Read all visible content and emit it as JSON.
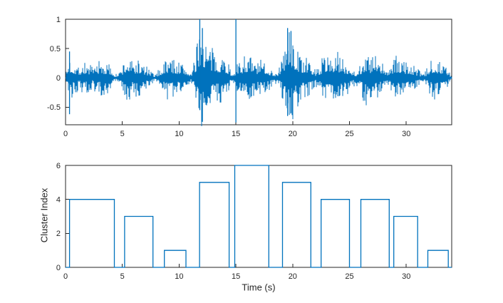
{
  "figure": {
    "background": "#ffffff",
    "line_color": "#0072BD",
    "axis_color": "#262626",
    "tick_label_color": "#262626"
  },
  "chart_data": [
    {
      "type": "line",
      "title": "",
      "xlabel": "",
      "ylabel": "",
      "description": "audio-waveform",
      "xlim": [
        0,
        34
      ],
      "ylim": [
        -0.8,
        1
      ],
      "xticks": [
        0,
        5,
        10,
        15,
        20,
        25,
        30
      ],
      "yticks": [
        -0.5,
        0,
        0.5,
        1
      ],
      "xtick_labels": [
        "0",
        "5",
        "10",
        "15",
        "20",
        "25",
        "30"
      ],
      "ytick_labels": [
        "-0.5",
        "0",
        "0.5",
        "1"
      ],
      "grid": false,
      "legend": false,
      "envelope": [
        [
          0,
          0.03
        ],
        [
          0.3,
          0.4
        ],
        [
          0.8,
          0.3
        ],
        [
          1.2,
          0.22
        ],
        [
          1.6,
          0.3
        ],
        [
          2,
          0.28
        ],
        [
          2.4,
          0.18
        ],
        [
          2.8,
          0.32
        ],
        [
          3.2,
          0.3
        ],
        [
          3.6,
          0.28
        ],
        [
          4,
          0.22
        ],
        [
          4.4,
          0.06
        ],
        [
          4.8,
          0.12
        ],
        [
          5.1,
          0.3
        ],
        [
          5.5,
          0.42
        ],
        [
          5.9,
          0.3
        ],
        [
          6.3,
          0.35
        ],
        [
          6.7,
          0.28
        ],
        [
          7.1,
          0.22
        ],
        [
          7.5,
          0.12
        ],
        [
          7.9,
          0.06
        ],
        [
          8.3,
          0.18
        ],
        [
          8.7,
          0.32
        ],
        [
          9.1,
          0.4
        ],
        [
          9.5,
          0.35
        ],
        [
          9.9,
          0.3
        ],
        [
          10.3,
          0.28
        ],
        [
          10.7,
          0.18
        ],
        [
          11.1,
          0.1
        ],
        [
          11.5,
          0.45
        ],
        [
          11.8,
          1.0
        ],
        [
          12.1,
          0.85
        ],
        [
          12.4,
          0.7
        ],
        [
          12.7,
          0.55
        ],
        [
          13,
          0.5
        ],
        [
          13.4,
          0.42
        ],
        [
          13.8,
          0.45
        ],
        [
          14.2,
          0.35
        ],
        [
          14.6,
          0.12
        ],
        [
          14.95,
          0.2
        ],
        [
          15.4,
          0.3
        ],
        [
          15.8,
          0.45
        ],
        [
          16.2,
          0.4
        ],
        [
          16.6,
          0.32
        ],
        [
          17,
          0.28
        ],
        [
          17.4,
          0.35
        ],
        [
          17.8,
          0.25
        ],
        [
          18.2,
          0.15
        ],
        [
          18.6,
          0.1
        ],
        [
          19,
          0.3
        ],
        [
          19.4,
          0.7
        ],
        [
          19.7,
          0.85
        ],
        [
          20,
          0.75
        ],
        [
          20.4,
          0.5
        ],
        [
          20.8,
          0.4
        ],
        [
          21.2,
          0.35
        ],
        [
          21.6,
          0.3
        ],
        [
          22,
          0.15
        ],
        [
          22.4,
          0.25
        ],
        [
          22.8,
          0.45
        ],
        [
          23.2,
          0.5
        ],
        [
          23.6,
          0.4
        ],
        [
          24,
          0.45
        ],
        [
          24.4,
          0.35
        ],
        [
          24.8,
          0.3
        ],
        [
          25.2,
          0.2
        ],
        [
          25.6,
          0.12
        ],
        [
          26,
          0.28
        ],
        [
          26.4,
          0.5
        ],
        [
          26.8,
          0.35
        ],
        [
          27.2,
          0.45
        ],
        [
          27.6,
          0.3
        ],
        [
          28,
          0.25
        ],
        [
          28.4,
          0.18
        ],
        [
          28.8,
          0.3
        ],
        [
          29.2,
          0.4
        ],
        [
          29.6,
          0.35
        ],
        [
          30,
          0.3
        ],
        [
          30.4,
          0.25
        ],
        [
          30.8,
          0.2
        ],
        [
          31.2,
          0.12
        ],
        [
          31.6,
          0.08
        ],
        [
          32,
          0.25
        ],
        [
          32.4,
          0.42
        ],
        [
          32.8,
          0.35
        ],
        [
          33.2,
          0.3
        ],
        [
          33.6,
          0.2
        ],
        [
          33.9,
          0.05
        ]
      ],
      "spikes": [
        {
          "t": 0.35,
          "min": -0.62,
          "max": 0.45
        },
        {
          "t": 11.82,
          "min": -0.55,
          "max": 1.0
        },
        {
          "t": 12.05,
          "min": -0.75,
          "max": 0.85
        },
        {
          "t": 15.0,
          "min": -0.76,
          "max": 1.0
        },
        {
          "t": 19.55,
          "min": -0.65,
          "max": 0.85
        },
        {
          "t": 19.85,
          "min": -0.6,
          "max": 0.8
        }
      ]
    },
    {
      "type": "stairs",
      "title": "",
      "xlabel": "Time (s)",
      "ylabel": "Cluster Index",
      "xlim": [
        0,
        34
      ],
      "ylim": [
        0,
        6
      ],
      "xticks": [
        0,
        5,
        10,
        15,
        20,
        25,
        30
      ],
      "yticks": [
        0,
        2,
        4,
        6
      ],
      "xtick_labels": [
        "0",
        "5",
        "10",
        "15",
        "20",
        "25",
        "30"
      ],
      "ytick_labels": [
        "0",
        "2",
        "4",
        "6"
      ],
      "grid": false,
      "legend": false,
      "segments": [
        {
          "start": 0.35,
          "end": 4.3,
          "value": 4
        },
        {
          "start": 5.2,
          "end": 7.7,
          "value": 3
        },
        {
          "start": 8.7,
          "end": 10.6,
          "value": 1
        },
        {
          "start": 11.8,
          "end": 14.4,
          "value": 5
        },
        {
          "start": 14.9,
          "end": 17.9,
          "value": 6
        },
        {
          "start": 19.1,
          "end": 21.6,
          "value": 5
        },
        {
          "start": 22.5,
          "end": 25.0,
          "value": 4
        },
        {
          "start": 26.0,
          "end": 28.5,
          "value": 4
        },
        {
          "start": 28.9,
          "end": 31.0,
          "value": 3
        },
        {
          "start": 31.9,
          "end": 33.7,
          "value": 1
        }
      ]
    }
  ]
}
